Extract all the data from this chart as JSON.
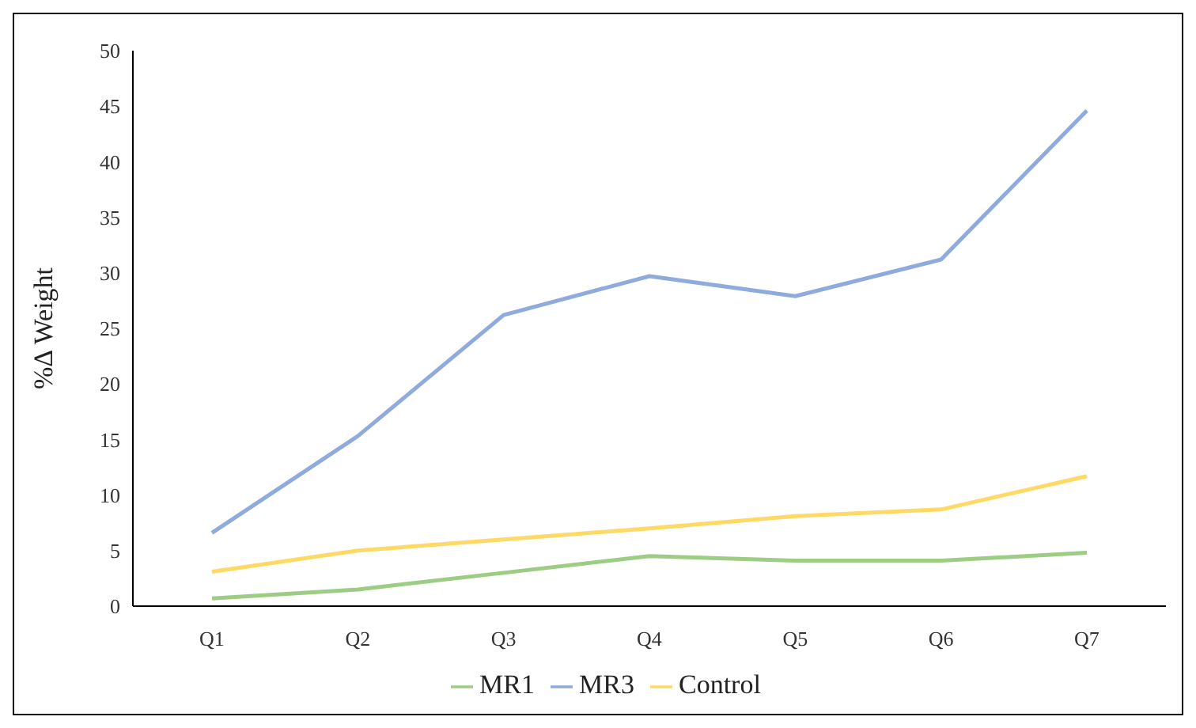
{
  "chart_data": {
    "type": "line",
    "ylabel": "%Δ Weight",
    "categories": [
      "Q1",
      "Q2",
      "Q3",
      "Q4",
      "Q5",
      "Q6",
      "Q7"
    ],
    "series": [
      {
        "name": "MR1",
        "color": "#9dcc84",
        "values": [
          0.7,
          1.5,
          3.0,
          4.5,
          4.1,
          4.1,
          4.8
        ]
      },
      {
        "name": "MR3",
        "color": "#8faadc",
        "values": [
          6.6,
          15.3,
          26.2,
          29.7,
          27.9,
          31.2,
          44.6
        ]
      },
      {
        "name": "Control",
        "color": "#ffd966",
        "values": [
          3.1,
          5.0,
          6.0,
          7.0,
          8.1,
          8.7,
          11.7
        ]
      }
    ],
    "ylim": [
      0,
      50
    ],
    "yticks": [
      0,
      5,
      10,
      15,
      20,
      25,
      30,
      35,
      40,
      45,
      50
    ],
    "grid": false,
    "legend": "bottom",
    "marker": "none",
    "line_style": "solid"
  }
}
